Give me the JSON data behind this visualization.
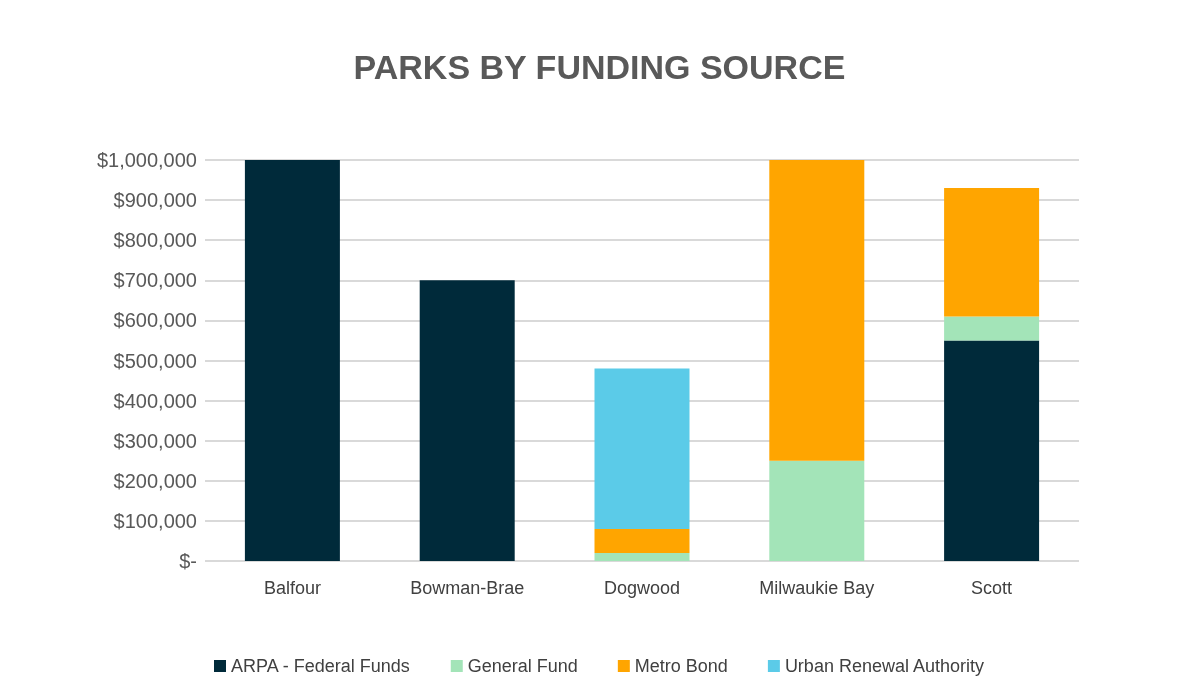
{
  "chart_data": {
    "type": "bar",
    "title": "PARKS BY FUNDING SOURCE",
    "stacked": true,
    "grid": "y",
    "legend": "bottom",
    "categories": [
      "Balfour",
      "Bowman-Brae",
      "Dogwood",
      "Milwaukie Bay",
      "Scott"
    ],
    "series": [
      {
        "name": "ARPA - Federal Funds",
        "color": "#002a3a",
        "values": [
          1000000,
          700000,
          null,
          null,
          550000
        ]
      },
      {
        "name": "General Fund",
        "color": "#a3e4b8",
        "values": [
          null,
          null,
          20000,
          250000,
          60000
        ]
      },
      {
        "name": "Metro Bond",
        "color": "#ffa500",
        "values": [
          null,
          null,
          60000,
          750000,
          320000
        ]
      },
      {
        "name": "Urban Renewal Authority",
        "color": "#5bcbe8",
        "values": [
          null,
          null,
          400000,
          null,
          null
        ]
      }
    ],
    "ylim": [
      0,
      1000000
    ],
    "yticks": [
      {
        "value": 0,
        "label": "$-"
      },
      {
        "value": 100000,
        "label": "$100,000"
      },
      {
        "value": 200000,
        "label": "$200,000"
      },
      {
        "value": 300000,
        "label": "$300,000"
      },
      {
        "value": 400000,
        "label": "$400,000"
      },
      {
        "value": 500000,
        "label": "$500,000"
      },
      {
        "value": 600000,
        "label": "$600,000"
      },
      {
        "value": 700000,
        "label": "$700,000"
      },
      {
        "value": 800000,
        "label": "$800,000"
      },
      {
        "value": 900000,
        "label": "$900,000"
      },
      {
        "value": 1000000,
        "label": "$1,000,000"
      }
    ]
  }
}
